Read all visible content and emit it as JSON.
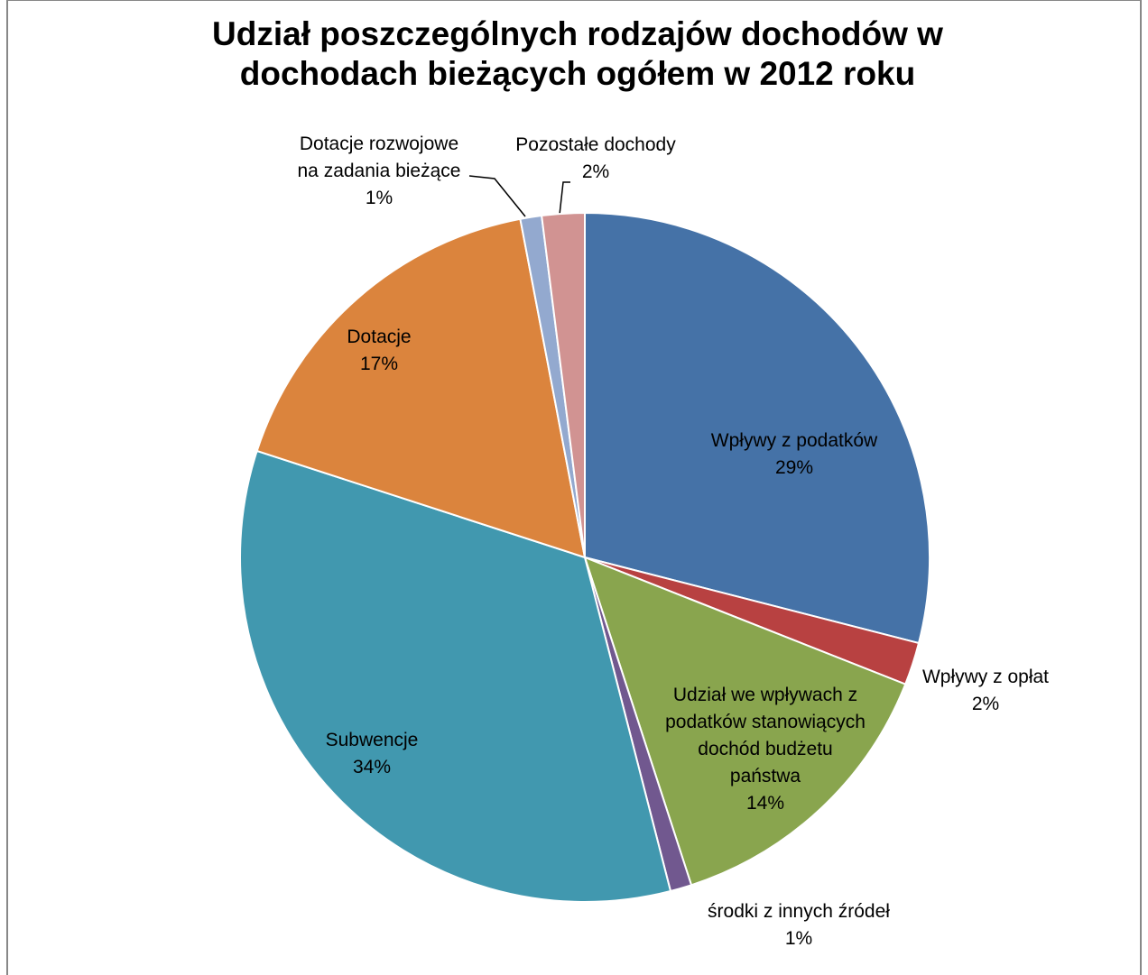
{
  "chart_data": {
    "type": "pie",
    "title": "Udział poszczególnych rodzajów dochodów w\ndochodach bieżących ogółem w 2012 roku",
    "categories": [
      "Wpływy z podatków",
      "Wpływy z opłat",
      "Udział we wpływach z\npodatków stanowiących\ndochód budżetu\npaństwa",
      "środki z innych źródeł",
      "Subwencje",
      "Dotacje",
      "Dotacje rozwojowe\nna zadania bieżące",
      "Pozostałe dochody"
    ],
    "values": [
      29,
      2,
      14,
      1,
      34,
      17,
      1,
      2
    ],
    "value_labels": [
      "29%",
      "2%",
      "14%",
      "1%",
      "34%",
      "17%",
      "1%",
      "2%"
    ],
    "colors": [
      "#4572a7",
      "#b84141",
      "#89a54e",
      "#71588f",
      "#4198af",
      "#db843d",
      "#93a9cf",
      "#d19392"
    ]
  }
}
